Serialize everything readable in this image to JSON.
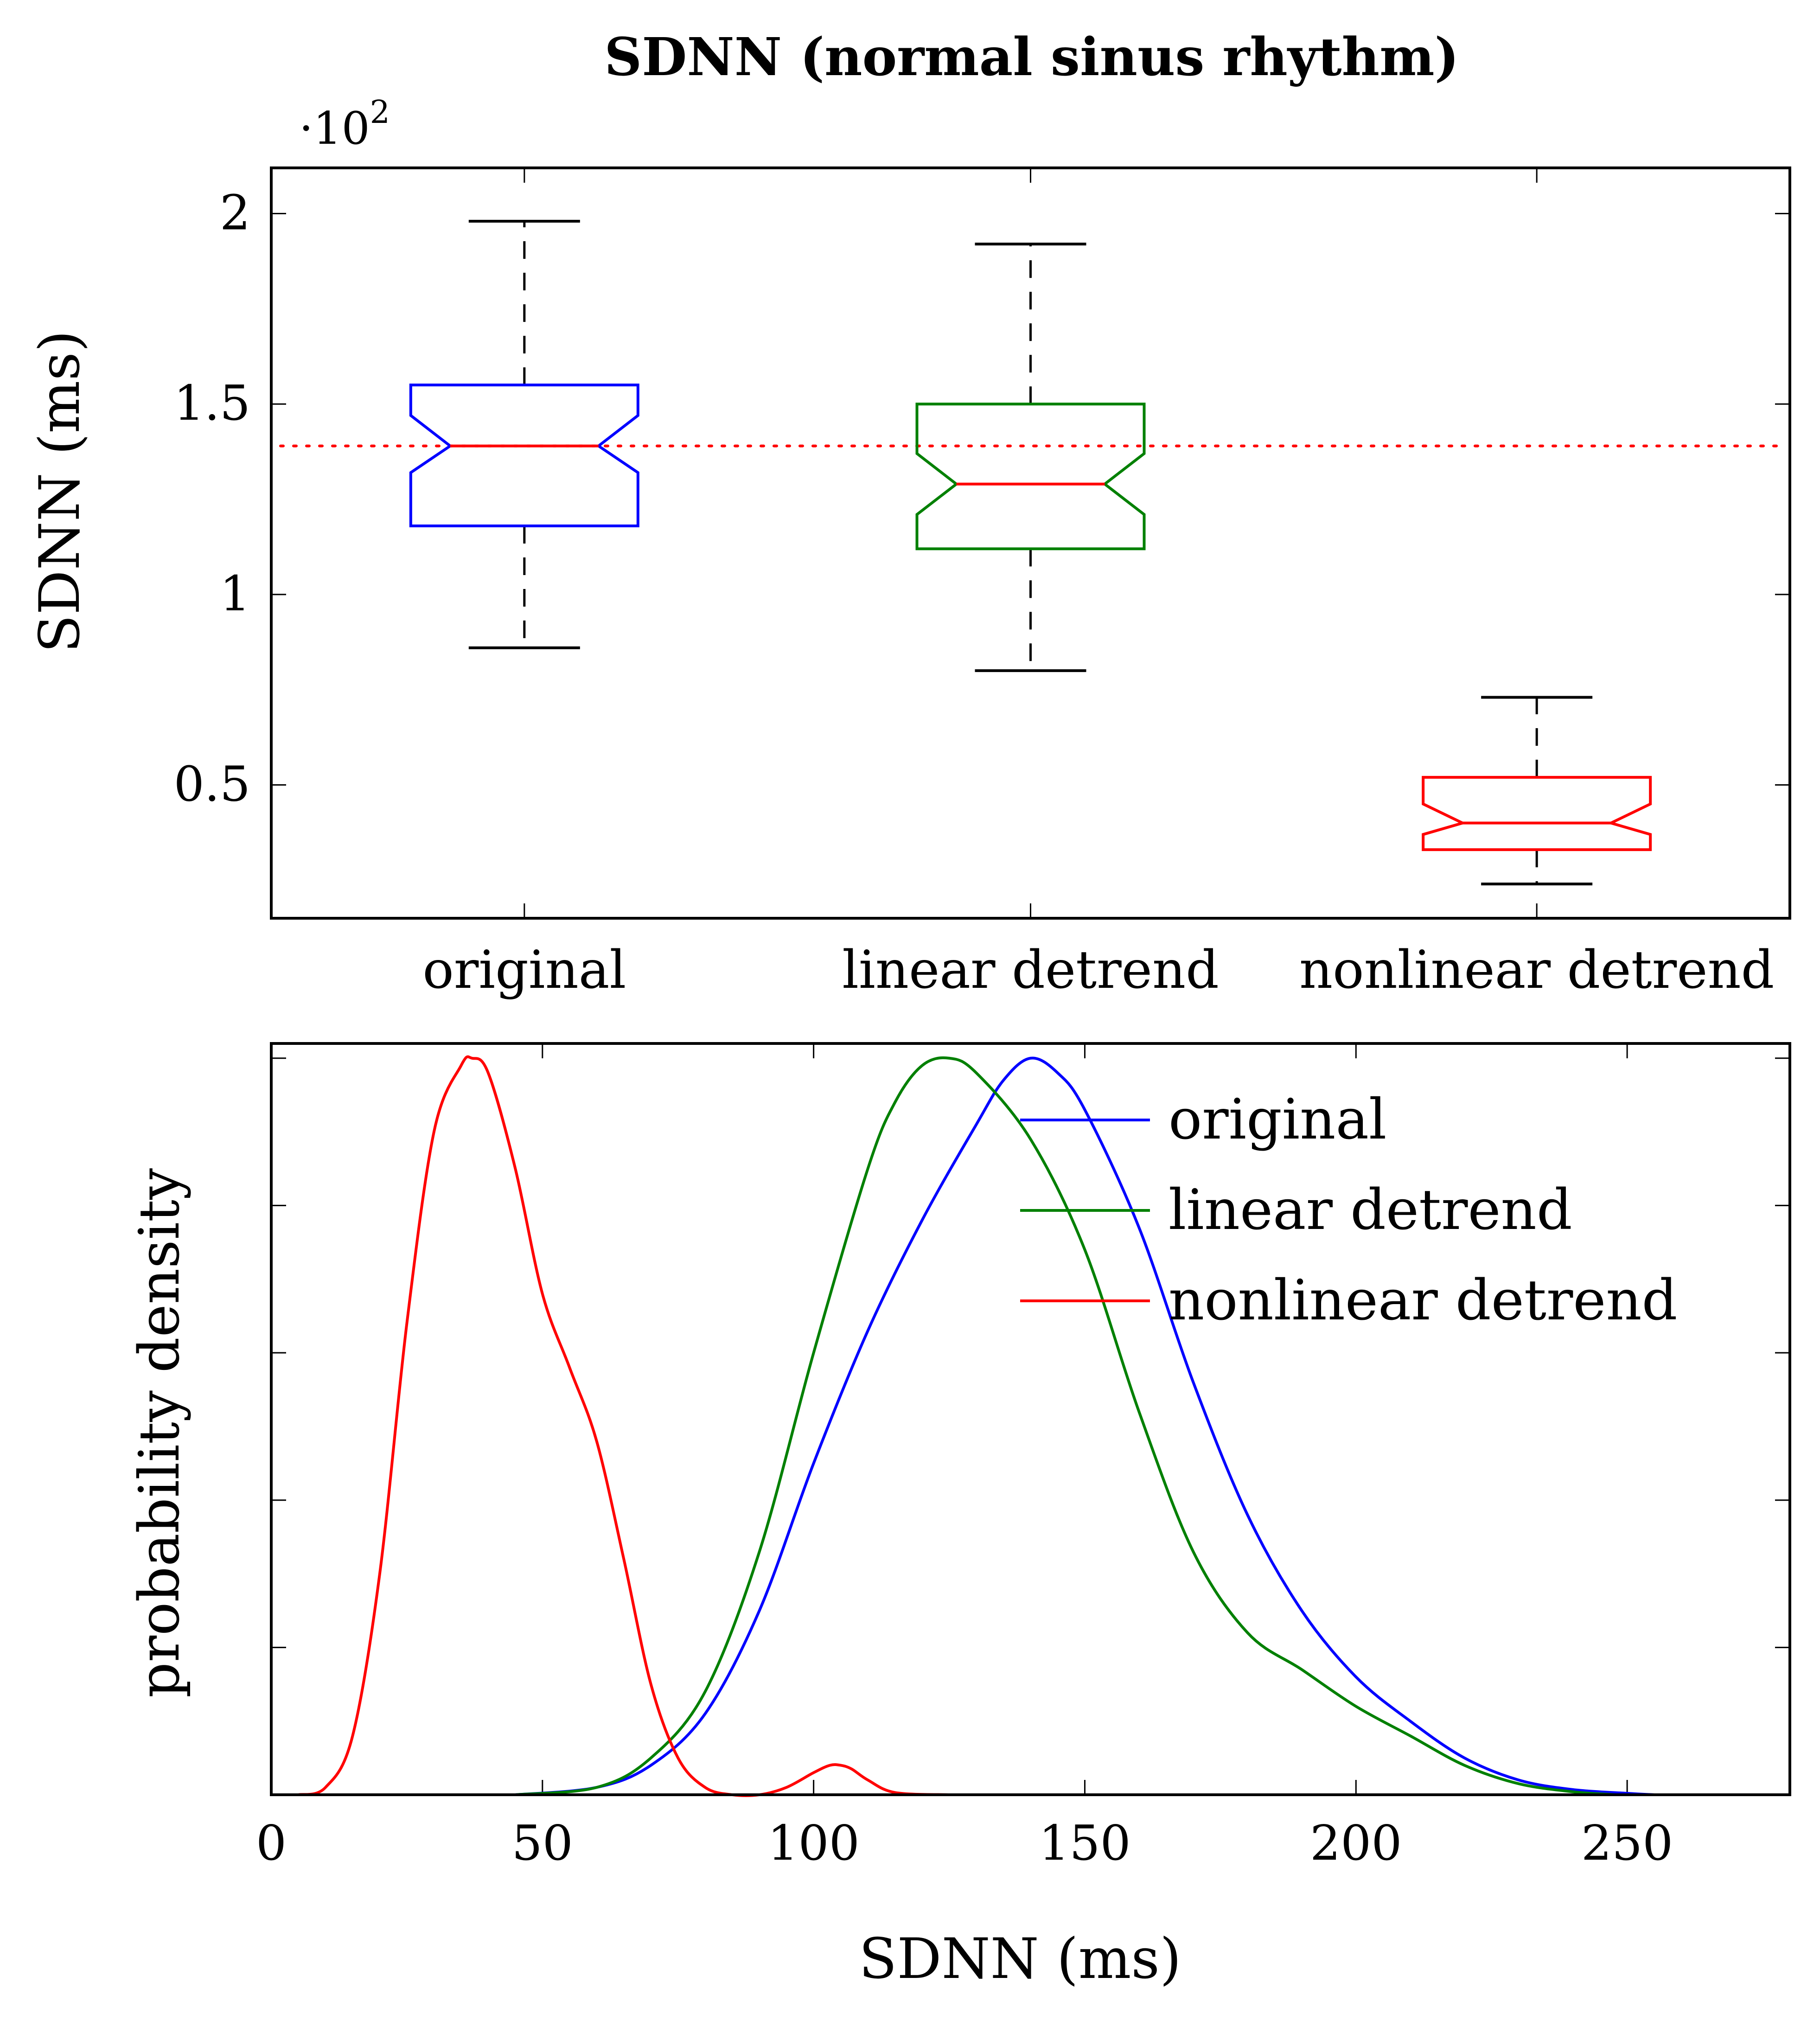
{
  "chart_data": [
    {
      "type": "box",
      "title": "SDNN (normal sinus rhythm)",
      "ylabel": "SDNN (ms)",
      "y_multiplier": "·10",
      "y_multiplier_exp": "2",
      "ylim": [
        0.15,
        2.12
      ],
      "yticks": [
        0.5,
        1,
        1.5,
        2
      ],
      "ytick_labels": [
        "0.5",
        "1",
        "1.5",
        "2"
      ],
      "reference_line": 1.39,
      "categories": [
        "original",
        "linear detrend",
        "nonlinear detrend"
      ],
      "boxes": [
        {
          "name": "original",
          "color": "#0000ff",
          "whisker_low": 0.86,
          "q1": 1.18,
          "median": 1.39,
          "q3": 1.55,
          "whisker_high": 1.98,
          "notch_low": 1.32,
          "notch_high": 1.47
        },
        {
          "name": "linear detrend",
          "color": "#008000",
          "whisker_low": 0.8,
          "q1": 1.12,
          "median": 1.29,
          "q3": 1.5,
          "whisker_high": 1.92,
          "notch_low": 1.21,
          "notch_high": 1.37
        },
        {
          "name": "nonlinear detrend",
          "color": "#ff0000",
          "whisker_low": 0.24,
          "q1": 0.33,
          "median": 0.4,
          "q3": 0.52,
          "whisker_high": 0.73,
          "notch_low": 0.37,
          "notch_high": 0.45
        }
      ]
    },
    {
      "type": "line",
      "xlabel": "SDNN (ms)",
      "ylabel": "probability density",
      "xlim": [
        0,
        280
      ],
      "ylim": [
        0,
        1.02
      ],
      "xticks": [
        0,
        50,
        100,
        150,
        200,
        250
      ],
      "xtick_labels": [
        "0",
        "50",
        "100",
        "150",
        "200",
        "250"
      ],
      "yticks": [
        0.2,
        0.4,
        0.6,
        0.8,
        1.0
      ],
      "legend_position": "top-right",
      "series": [
        {
          "name": "original",
          "color": "#0000ff",
          "x": [
            45,
            60,
            70,
            80,
            90,
            100,
            110,
            120,
            130,
            135,
            140,
            145,
            150,
            160,
            170,
            180,
            190,
            200,
            210,
            220,
            230,
            240,
            250,
            255
          ],
          "y": [
            0.0,
            0.01,
            0.04,
            0.11,
            0.25,
            0.45,
            0.63,
            0.78,
            0.91,
            0.97,
            1.0,
            0.98,
            0.93,
            0.77,
            0.56,
            0.38,
            0.25,
            0.16,
            0.1,
            0.05,
            0.02,
            0.007,
            0.002,
            0.0
          ]
        },
        {
          "name": "linear detrend",
          "color": "#008000",
          "x": [
            45,
            60,
            70,
            80,
            90,
            100,
            110,
            115,
            120,
            125,
            130,
            140,
            150,
            160,
            170,
            180,
            190,
            200,
            210,
            220,
            230,
            240,
            248
          ],
          "y": [
            0.0,
            0.01,
            0.05,
            0.14,
            0.33,
            0.6,
            0.85,
            0.94,
            0.99,
            1.0,
            0.98,
            0.89,
            0.74,
            0.52,
            0.33,
            0.22,
            0.17,
            0.12,
            0.08,
            0.04,
            0.015,
            0.004,
            0.0
          ]
        },
        {
          "name": "nonlinear detrend",
          "color": "#ff0000",
          "x": [
            5,
            10,
            15,
            20,
            25,
            30,
            35,
            37,
            40,
            45,
            50,
            55,
            60,
            65,
            70,
            75,
            80,
            85,
            90,
            95,
            100,
            103,
            105,
            107,
            110,
            115,
            125
          ],
          "y": [
            0.0,
            0.01,
            0.08,
            0.3,
            0.64,
            0.9,
            0.99,
            1.0,
            0.98,
            0.85,
            0.68,
            0.58,
            0.48,
            0.32,
            0.15,
            0.05,
            0.01,
            0.0,
            0.0,
            0.01,
            0.03,
            0.04,
            0.04,
            0.035,
            0.02,
            0.003,
            0.0
          ]
        }
      ]
    }
  ]
}
